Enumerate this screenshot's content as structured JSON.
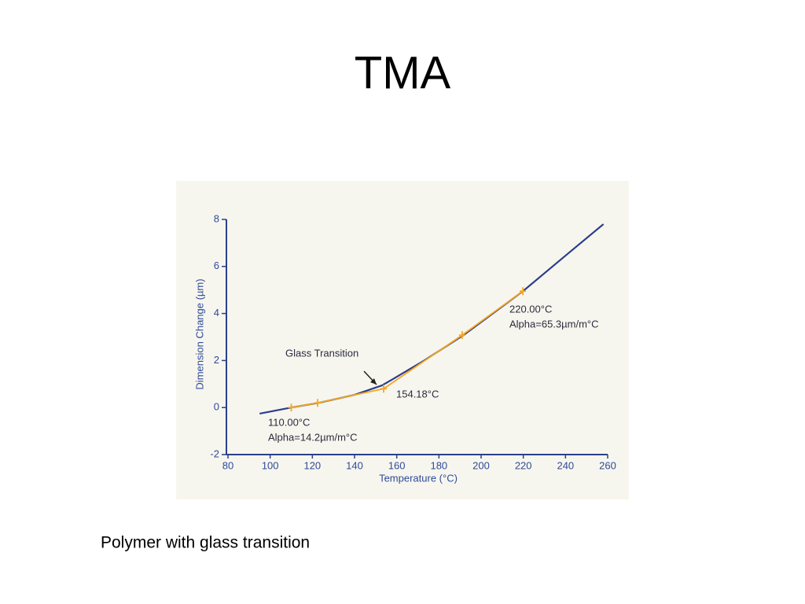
{
  "slide": {
    "title": "TMA",
    "caption": "Polymer with glass transition"
  },
  "chart_data": {
    "type": "line",
    "xlabel": "Temperature (°C)",
    "ylabel": "Dimension Change (µm)",
    "xlim": [
      80,
      260
    ],
    "xticks": [
      80,
      100,
      120,
      140,
      160,
      180,
      200,
      220,
      240,
      260
    ],
    "ylim": [
      -2,
      8
    ],
    "yticks": [
      -2,
      0,
      2,
      4,
      6,
      8
    ],
    "series": [
      {
        "color": "#2b3f8c",
        "x": [
          95,
          110,
          123,
          140,
          153,
          158,
          173,
          192,
          220,
          240,
          258
        ],
        "values": [
          -0.26,
          0,
          0.2,
          0.54,
          0.94,
          1.2,
          2.0,
          3.1,
          4.96,
          6.46,
          7.8
        ]
      },
      {
        "color": "#f5a623",
        "x": [
          110,
          122.5,
          153.8,
          191,
          219.8
        ],
        "values": [
          0,
          0.2,
          0.8,
          3.08,
          4.95
        ]
      }
    ],
    "annotations": [
      "Glass Transition",
      "154.18°C",
      "110.00°C",
      "Alpha=14.2µm/m°C",
      "220.00°C",
      "Alpha=65.3µm/m°C"
    ]
  }
}
